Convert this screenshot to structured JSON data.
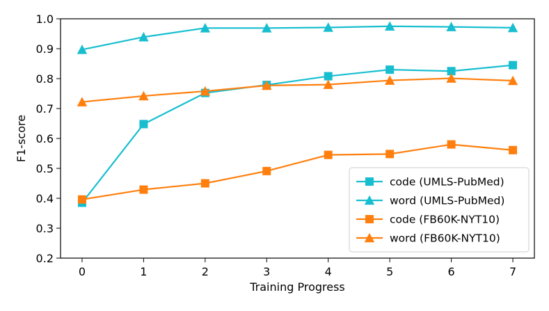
{
  "chart_data": {
    "type": "line",
    "title": "",
    "xlabel": "Training Progress",
    "ylabel": "F1-score",
    "x": [
      0,
      1,
      2,
      3,
      4,
      5,
      6,
      7
    ],
    "xlim": [
      -0.35,
      7.35
    ],
    "ylim": [
      0.2,
      1.0
    ],
    "xticks": [
      "0",
      "1",
      "2",
      "3",
      "4",
      "5",
      "6",
      "7"
    ],
    "yticks": [
      "0.2",
      "0.3",
      "0.4",
      "0.5",
      "0.6",
      "0.7",
      "0.8",
      "0.9",
      "1.0"
    ],
    "grid": false,
    "legend_position": "lower-right",
    "series": [
      {
        "name": "code (UMLS-PubMed)",
        "color": "#17becf",
        "marker": "square",
        "values": [
          0.385,
          0.648,
          0.752,
          0.779,
          0.808,
          0.83,
          0.825,
          0.845
        ]
      },
      {
        "name": "word (UMLS-PubMed)",
        "color": "#17becf",
        "marker": "triangle",
        "values": [
          0.897,
          0.939,
          0.969,
          0.969,
          0.971,
          0.975,
          0.973,
          0.97
        ]
      },
      {
        "name": "code (FB60K-NYT10)",
        "color": "#ff7f0e",
        "marker": "square",
        "values": [
          0.396,
          0.429,
          0.45,
          0.491,
          0.545,
          0.548,
          0.58,
          0.561
        ]
      },
      {
        "name": "word (FB60K-NYT10)",
        "color": "#ff7f0e",
        "marker": "triangle",
        "values": [
          0.722,
          0.742,
          0.758,
          0.777,
          0.78,
          0.794,
          0.801,
          0.793
        ]
      }
    ]
  }
}
